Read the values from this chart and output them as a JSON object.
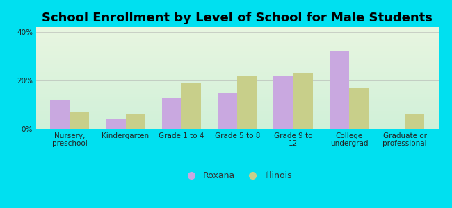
{
  "title": "School Enrollment by Level of School for Male Students",
  "categories": [
    "Nursery,\npreschool",
    "Kindergarten",
    "Grade 1 to 4",
    "Grade 5 to 8",
    "Grade 9 to\n12",
    "College\nundergrad",
    "Graduate or\nprofessional"
  ],
  "roxana": [
    12,
    4,
    13,
    15,
    22,
    32,
    0
  ],
  "illinois": [
    7,
    6,
    19,
    22,
    23,
    17,
    6
  ],
  "roxana_color": "#c9a8e0",
  "illinois_color": "#c8cf8a",
  "background_outer": "#00e0f0",
  "bg_top": "#e8f5e0",
  "bg_bottom": "#d0f0d8",
  "ylabel_ticks": [
    "0%",
    "20%",
    "40%"
  ],
  "yticks": [
    0,
    20,
    40
  ],
  "ylim": [
    0,
    42
  ],
  "bar_width": 0.35,
  "title_fontsize": 13,
  "tick_fontsize": 7.5,
  "legend_fontsize": 9
}
